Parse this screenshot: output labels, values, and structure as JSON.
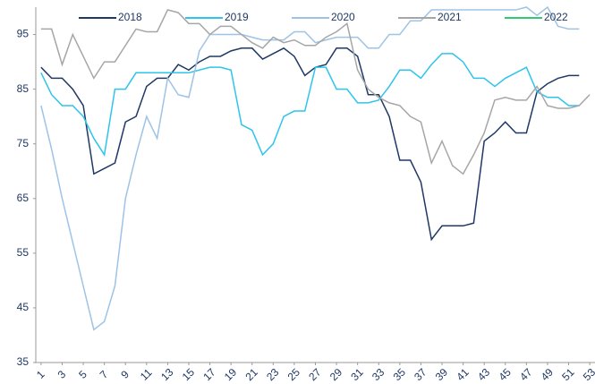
{
  "chart_data": {
    "type": "line",
    "x": [
      1,
      2,
      3,
      4,
      5,
      6,
      7,
      8,
      9,
      10,
      11,
      12,
      13,
      14,
      15,
      16,
      17,
      18,
      19,
      20,
      21,
      22,
      23,
      24,
      25,
      26,
      27,
      28,
      29,
      30,
      31,
      32,
      33,
      34,
      35,
      36,
      37,
      38,
      39,
      40,
      41,
      42,
      43,
      44,
      45,
      46,
      47,
      48,
      49,
      50,
      51,
      52,
      53
    ],
    "xlim": [
      0.5,
      53.5
    ],
    "xticks": [
      1,
      3,
      5,
      7,
      9,
      11,
      13,
      15,
      17,
      19,
      21,
      23,
      25,
      27,
      29,
      31,
      33,
      35,
      37,
      39,
      41,
      43,
      45,
      47,
      49,
      51,
      53
    ],
    "ylim": [
      35,
      100
    ],
    "yticks": [
      35,
      45,
      55,
      65,
      75,
      85,
      95
    ],
    "grid": false,
    "legend": "top",
    "series": [
      {
        "name": "2018",
        "color": "#1f3864",
        "values": [
          89,
          87,
          87,
          85,
          82,
          69.5,
          70.5,
          71.5,
          79,
          80,
          85.5,
          87,
          87,
          89.5,
          88.5,
          90,
          91,
          91,
          92,
          92.5,
          92.5,
          90.5,
          91.5,
          92.5,
          91,
          87.5,
          89,
          89.5,
          92.5,
          92.5,
          91,
          84,
          84,
          80,
          72,
          72,
          68,
          57.5,
          60,
          60,
          60,
          60.5,
          75.5,
          77,
          79,
          77,
          77,
          84.5,
          86,
          87,
          87.5,
          87.5,
          null
        ]
      },
      {
        "name": "2019",
        "color": "#2ec4ec",
        "values": [
          88,
          84,
          82,
          82,
          80,
          76,
          73,
          85,
          85,
          88,
          88,
          88,
          88,
          88,
          88,
          88.5,
          89,
          89,
          88.5,
          78.5,
          77.5,
          73,
          75,
          80,
          81,
          81,
          89,
          89,
          85,
          85,
          82.5,
          82.5,
          83,
          85.5,
          88.5,
          88.5,
          87,
          89.5,
          91.5,
          91.5,
          90,
          87,
          87,
          85.5,
          87,
          88,
          89,
          84.5,
          83.5,
          83.5,
          82,
          82,
          null
        ]
      },
      {
        "name": "2020",
        "color": "#9dc3e6",
        "values": [
          82,
          74,
          65,
          57,
          49,
          41,
          42.5,
          49,
          65,
          73,
          80,
          76,
          87,
          84,
          83.5,
          92,
          95,
          95,
          95,
          95,
          94.5,
          94,
          94,
          94,
          95.5,
          95.5,
          93.5,
          94,
          94.5,
          94.5,
          94.5,
          92.5,
          92.5,
          95,
          95,
          97.5,
          97.5,
          99.5,
          99.5,
          99.5,
          99.5,
          99.5,
          99.5,
          99.5,
          99.5,
          99.5,
          100,
          98.5,
          100,
          96.5,
          96,
          96,
          null
        ]
      },
      {
        "name": "2021",
        "color": "#a6a6a6",
        "values": [
          96,
          96,
          89.5,
          95,
          91,
          87,
          90,
          90,
          93,
          96,
          95.5,
          95.5,
          99.5,
          99,
          97,
          97,
          95,
          96.5,
          96.5,
          95,
          93.5,
          92.5,
          94.5,
          93.5,
          94,
          93,
          93,
          94.5,
          95.5,
          97,
          88.5,
          85,
          83.5,
          82.5,
          82,
          80,
          79,
          71.5,
          75.5,
          71,
          69.5,
          73,
          77,
          83,
          83.5,
          83,
          83,
          85.5,
          82,
          81.5,
          81.5,
          82,
          84
        ]
      },
      {
        "name": "2022",
        "color": "#2ecc71",
        "values": [
          null,
          null,
          null,
          null,
          null,
          null,
          null,
          null,
          null,
          null,
          null,
          null,
          null,
          null,
          null,
          null,
          null,
          null,
          null,
          null,
          null,
          null,
          null,
          null,
          null,
          null,
          null,
          null,
          null,
          null,
          null,
          null,
          null,
          null,
          null,
          null,
          null,
          null,
          null,
          null,
          null,
          null,
          null,
          null,
          null,
          null,
          null,
          null,
          null,
          null,
          null,
          null,
          null
        ]
      }
    ]
  }
}
